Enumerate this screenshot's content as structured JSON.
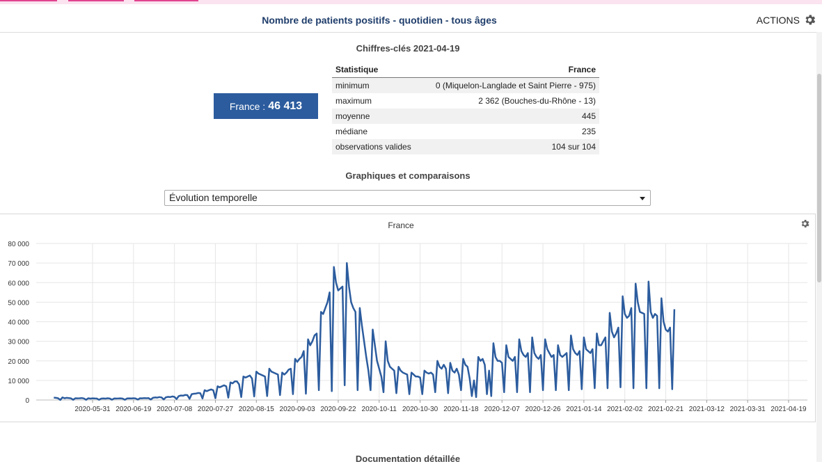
{
  "header": {
    "title": "Nombre de patients positifs - quotidien - tous âges",
    "actions_label": "ACTIONS"
  },
  "key_figures": {
    "title": "Chiffres-clés 2021-04-19",
    "value_label": "France : ",
    "value": "46 413",
    "table": {
      "col_stat": "Statistique",
      "col_region": "France",
      "rows": [
        {
          "label": "minimum",
          "value": "0 (Miquelon-Langlade et Saint Pierre - 975)"
        },
        {
          "label": "maximum",
          "value": "2 362 (Bouches-du-Rhône - 13)"
        },
        {
          "label": "moyenne",
          "value": "445"
        },
        {
          "label": "médiane",
          "value": "235"
        },
        {
          "label": "observations valides",
          "value": "104 sur 104"
        }
      ]
    }
  },
  "graphs": {
    "title": "Graphiques et comparaisons",
    "select_value": "Évolution temporelle"
  },
  "documentation": {
    "title": "Documentation détaillée"
  },
  "colors": {
    "line": "#2c5c9e",
    "value_box": "#2c5c9e",
    "accent_pink": "#e0438f"
  },
  "icons": {
    "actions": "gear-icon",
    "chart_options": "gear-icon",
    "select_arrow": "chevron-down-icon"
  },
  "chart_data": {
    "type": "line",
    "title": "France",
    "xlabel": "",
    "ylabel": "",
    "ylim": [
      0,
      80000
    ],
    "grid": true,
    "yticks": [
      "0",
      "10 000",
      "20 000",
      "30 000",
      "40 000",
      "50 000",
      "60 000",
      "70 000",
      "80 000"
    ],
    "xticks": [
      "2020-05-31",
      "2020-06-19",
      "2020-07-08",
      "2020-07-27",
      "2020-08-15",
      "2020-09-03",
      "2020-09-22",
      "2020-10-11",
      "2020-10-30",
      "2020-11-18",
      "2020-12-07",
      "2020-12-26",
      "2021-01-14",
      "2021-02-02",
      "2021-02-21",
      "2021-03-12",
      "2021-03-31",
      "2021-04-19"
    ],
    "x_start": "2020-05-13",
    "series": [
      {
        "values": [
          1200,
          1100,
          900,
          50,
          1300,
          900,
          1100,
          1000,
          850,
          100,
          900,
          850,
          900,
          1000,
          800,
          100,
          900,
          700,
          850,
          800,
          750,
          100,
          700,
          800,
          700,
          900,
          750,
          150,
          800,
          750,
          800,
          850,
          700,
          100,
          800,
          850,
          800,
          900,
          800,
          200,
          900,
          850,
          1000,
          900,
          950,
          200,
          1100,
          1300,
          1200,
          1500,
          1300,
          300,
          1400,
          1600,
          1500,
          1800,
          1600,
          500,
          2000,
          2300,
          2200,
          2600,
          2500,
          600,
          3000,
          3200,
          3300,
          3600,
          3500,
          800,
          5000,
          4500,
          5000,
          5400,
          5000,
          900,
          7000,
          6500,
          7000,
          7500,
          7000,
          1200,
          9000,
          8500,
          9500,
          9500,
          8000,
          1500,
          12000,
          11500,
          12000,
          12500,
          11000,
          1800,
          14500,
          13500,
          13000,
          12500,
          12000,
          2000,
          16000,
          14500,
          14000,
          13500,
          13000,
          2500,
          14000,
          13000,
          14000,
          15500,
          16000,
          3000,
          21000,
          19500,
          21000,
          22000,
          25000,
          3200,
          31000,
          28000,
          30000,
          33000,
          34000,
          5000,
          45000,
          44000,
          47000,
          50000,
          55000,
          4500,
          68000,
          60000,
          56000,
          57000,
          58000,
          7500,
          70000,
          58000,
          50000,
          47000,
          45000,
          5000,
          47000,
          38000,
          30000,
          22000,
          15000,
          5000,
          36000,
          28000,
          20000,
          16000,
          12000,
          4000,
          30000,
          20000,
          17000,
          16000,
          15000,
          3500,
          17000,
          15000,
          14000,
          13500,
          13000,
          3000,
          14000,
          13000,
          12000,
          12000,
          11500,
          3000,
          15000,
          14000,
          13500,
          14000,
          13000,
          4000,
          20000,
          17000,
          16000,
          18000,
          16000,
          3500,
          19000,
          15000,
          14000,
          16000,
          13000,
          5000,
          21000,
          18000,
          17000,
          11000,
          2000,
          10000,
          1500,
          22000,
          20000,
          21000,
          18000,
          3000,
          15000,
          2000,
          29000,
          22000,
          20000,
          20000,
          19000,
          4000,
          28000,
          22000,
          21000,
          20000,
          22000,
          4000,
          31000,
          25000,
          23000,
          22000,
          24000,
          4000,
          32000,
          24000,
          22000,
          21000,
          23000,
          5000,
          31000,
          26000,
          24000,
          22000,
          23000,
          5000,
          28000,
          23000,
          22000,
          23000,
          24000,
          5000,
          33000,
          26000,
          24000,
          23000,
          25000,
          5500,
          32000,
          26000,
          25000,
          24000,
          26000,
          6000,
          34000,
          28000,
          28000,
          30000,
          32000,
          6000,
          44500,
          35000,
          32000,
          34000,
          37000,
          6500,
          53000,
          44000,
          42000,
          43000,
          47000,
          6000,
          59500,
          50000,
          45000,
          44500,
          44000,
          6000,
          60500,
          45000,
          42000,
          44000,
          43000,
          6000,
          52000,
          40000,
          36000,
          35000,
          37000,
          5500,
          46413
        ]
      }
    ]
  }
}
